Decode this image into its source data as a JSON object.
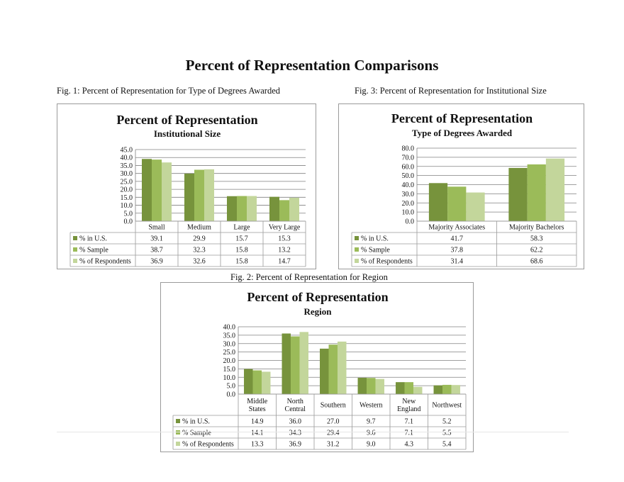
{
  "page": {
    "title": "Percent of Representation Comparisons",
    "captions": {
      "fig1": "Fig. 1: Percent of Representation for Type of Degrees Awarded",
      "fig3": "Fig. 3: Percent of Representation for Institutional Size",
      "fig2": "Fig. 2: Percent of Representation for Region"
    }
  },
  "colors": {
    "series": [
      "#77933c",
      "#9bbb59",
      "#c3d69b"
    ],
    "gridline": "#808080",
    "table_border": "#9a9a9a"
  },
  "chart_data": [
    {
      "id": "size",
      "type": "bar",
      "title": "Percent of Representation",
      "subtitle": "Institutional Size",
      "categories": [
        [
          "Small"
        ],
        [
          "Medium"
        ],
        [
          "Large"
        ],
        [
          "Very Large"
        ]
      ],
      "ylim": [
        0,
        45
      ],
      "ystep": 5,
      "tick_labels": [
        "0.0",
        "5.0",
        "10.0",
        "15.0",
        "20.0",
        "25.0",
        "30.0",
        "35.0",
        "40.0",
        "45.0"
      ],
      "grid": true,
      "legend": "data-table",
      "series": [
        {
          "name": "% in U.S.",
          "values": [
            39.1,
            29.9,
            15.7,
            15.3
          ],
          "labels": [
            "39.1",
            "29.9",
            "15.7",
            "15.3"
          ]
        },
        {
          "name": "% Sample",
          "values": [
            38.7,
            32.3,
            15.8,
            13.2
          ],
          "labels": [
            "38.7",
            "32.3",
            "15.8",
            "13.2"
          ]
        },
        {
          "name": "% of Respondents",
          "values": [
            36.9,
            32.6,
            15.8,
            14.7
          ],
          "labels": [
            "36.9",
            "32.6",
            "15.8",
            "14.7"
          ]
        }
      ]
    },
    {
      "id": "degrees",
      "type": "bar",
      "title": "Percent of Representation",
      "subtitle": "Type of Degrees Awarded",
      "categories": [
        [
          "Majority Associates"
        ],
        [
          "Majority Bachelors"
        ]
      ],
      "ylim": [
        0,
        80
      ],
      "ystep": 10,
      "tick_labels": [
        "0.0",
        "10.0",
        "20.0",
        "30.0",
        "40.0",
        "50.0",
        "60.0",
        "70.0",
        "80.0"
      ],
      "grid": true,
      "legend": "data-table",
      "series": [
        {
          "name": "% in U.S.",
          "values": [
            41.7,
            58.3
          ],
          "labels": [
            "41.7",
            "58.3"
          ]
        },
        {
          "name": "% Sample",
          "values": [
            37.8,
            62.2
          ],
          "labels": [
            "37.8",
            "62.2"
          ]
        },
        {
          "name": "% of Respondents",
          "values": [
            31.4,
            68.6
          ],
          "labels": [
            "31.4",
            "68.6"
          ]
        }
      ]
    },
    {
      "id": "region",
      "type": "bar",
      "title": "Percent of Representation",
      "subtitle": "Region",
      "categories": [
        [
          "Middle",
          "States"
        ],
        [
          "North",
          "Central"
        ],
        [
          "Southern"
        ],
        [
          "Western"
        ],
        [
          "New",
          "England"
        ],
        [
          "Northwest"
        ]
      ],
      "ylim": [
        0,
        40
      ],
      "ystep": 5,
      "tick_labels": [
        "0.0",
        "5.0",
        "10.0",
        "15.0",
        "20.0",
        "25.0",
        "30.0",
        "35.0",
        "40.0"
      ],
      "grid": true,
      "legend": "data-table",
      "series": [
        {
          "name": "% in U.S.",
          "values": [
            14.9,
            36.0,
            27.0,
            9.7,
            7.1,
            5.2
          ],
          "labels": [
            "14.9",
            "36.0",
            "27.0",
            "9.7",
            "7.1",
            "5.2"
          ]
        },
        {
          "name": "% Sample",
          "values": [
            14.1,
            34.3,
            29.4,
            9.6,
            7.1,
            5.5
          ],
          "labels": [
            "14.1",
            "34.3",
            "29.4",
            "9.6",
            "7.1",
            "5.5"
          ]
        },
        {
          "name": "% of Respondents",
          "values": [
            13.3,
            36.9,
            31.2,
            9.0,
            4.3,
            5.4
          ],
          "labels": [
            "13.3",
            "36.9",
            "31.2",
            "9.0",
            "4.3",
            "5.4"
          ]
        }
      ]
    }
  ]
}
